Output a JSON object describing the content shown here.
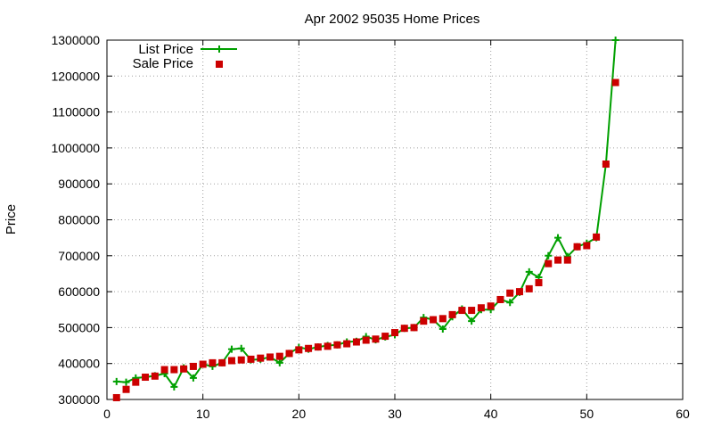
{
  "chart_data": {
    "type": "line",
    "title": "Apr 2002 95035 Home Prices",
    "xlabel": "",
    "ylabel": "Price",
    "xlim": [
      0,
      60
    ],
    "ylim": [
      300000,
      1300000
    ],
    "xticks": [
      0,
      10,
      20,
      30,
      40,
      50,
      60
    ],
    "yticks": [
      300000,
      400000,
      500000,
      600000,
      700000,
      800000,
      900000,
      1000000,
      1100000,
      1200000,
      1300000
    ],
    "grid": true,
    "legend_position": "top-left",
    "series": [
      {
        "name": "List Price",
        "kind": "line-points",
        "color": "#00a000",
        "marker": "plus",
        "x": [
          1,
          2,
          3,
          4,
          5,
          6,
          7,
          8,
          9,
          10,
          11,
          12,
          13,
          14,
          15,
          16,
          17,
          18,
          19,
          20,
          21,
          22,
          23,
          24,
          25,
          26,
          27,
          28,
          29,
          30,
          31,
          32,
          33,
          34,
          35,
          36,
          37,
          38,
          39,
          40,
          41,
          42,
          43,
          44,
          45,
          46,
          47,
          48,
          49,
          50,
          51,
          52,
          53
        ],
        "y": [
          350000,
          348000,
          360000,
          362000,
          366000,
          372000,
          335000,
          388000,
          360000,
          398000,
          392000,
          402000,
          440000,
          442000,
          410000,
          412000,
          418000,
          402000,
          428000,
          445000,
          440000,
          446000,
          450000,
          452000,
          460000,
          462000,
          475000,
          466000,
          474000,
          480000,
          498000,
          500000,
          528000,
          522000,
          496000,
          530000,
          552000,
          518000,
          550000,
          550000,
          578000,
          570000,
          598000,
          655000,
          640000,
          700000,
          750000,
          698000,
          725000,
          735000,
          750000,
          955000,
          1300000
        ]
      },
      {
        "name": "Sale Price",
        "kind": "points",
        "color": "#cc0000",
        "marker": "square",
        "x": [
          1,
          2,
          3,
          4,
          5,
          6,
          7,
          8,
          9,
          10,
          11,
          12,
          13,
          14,
          15,
          16,
          17,
          18,
          19,
          20,
          21,
          22,
          23,
          24,
          25,
          26,
          27,
          28,
          29,
          30,
          31,
          32,
          33,
          34,
          35,
          36,
          37,
          38,
          39,
          40,
          41,
          42,
          43,
          44,
          45,
          46,
          47,
          48,
          49,
          50,
          51,
          52,
          53
        ],
        "y": [
          305000,
          328000,
          348000,
          362000,
          365000,
          383000,
          383000,
          385000,
          392000,
          398000,
          402000,
          402000,
          408000,
          410000,
          412000,
          415000,
          418000,
          420000,
          428000,
          438000,
          442000,
          446000,
          448000,
          452000,
          455000,
          460000,
          465000,
          468000,
          476000,
          486000,
          498000,
          500000,
          518000,
          522000,
          525000,
          536000,
          548000,
          548000,
          555000,
          560000,
          578000,
          596000,
          600000,
          608000,
          625000,
          678000,
          688000,
          688000,
          725000,
          728000,
          752000,
          955000,
          1182000
        ]
      }
    ]
  }
}
